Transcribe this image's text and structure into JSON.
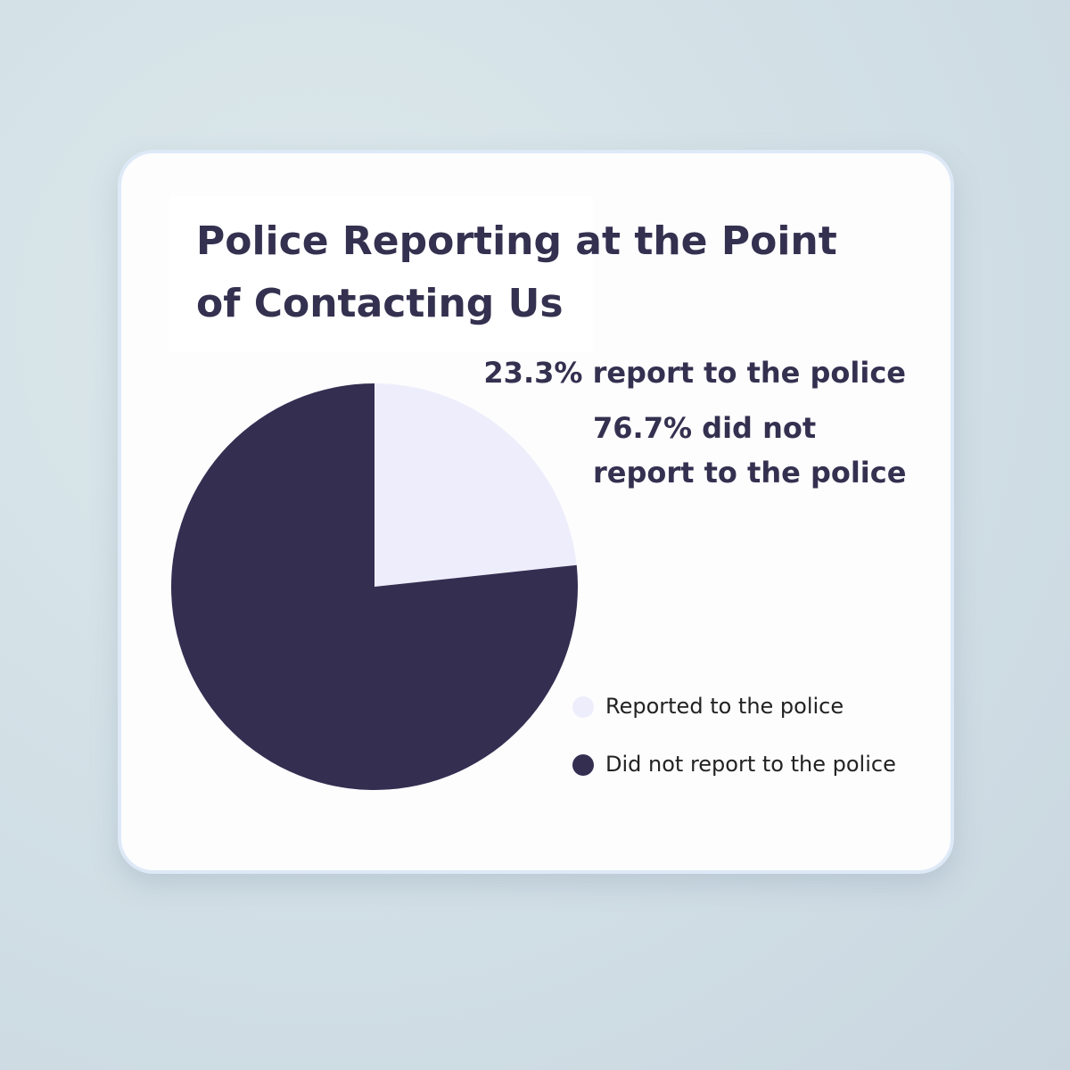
{
  "chart_data": {
    "type": "pie",
    "title": "Police Reporting at the Point of Contacting Us",
    "categories": [
      "Reported to the police",
      "Did not report to the police"
    ],
    "values": [
      23.3,
      76.7
    ],
    "value_labels": [
      "23.3% report to the police",
      "76.7% did not report to the police"
    ],
    "colors": [
      "#eeedfb",
      "#342e51"
    ],
    "legend": "right"
  }
}
